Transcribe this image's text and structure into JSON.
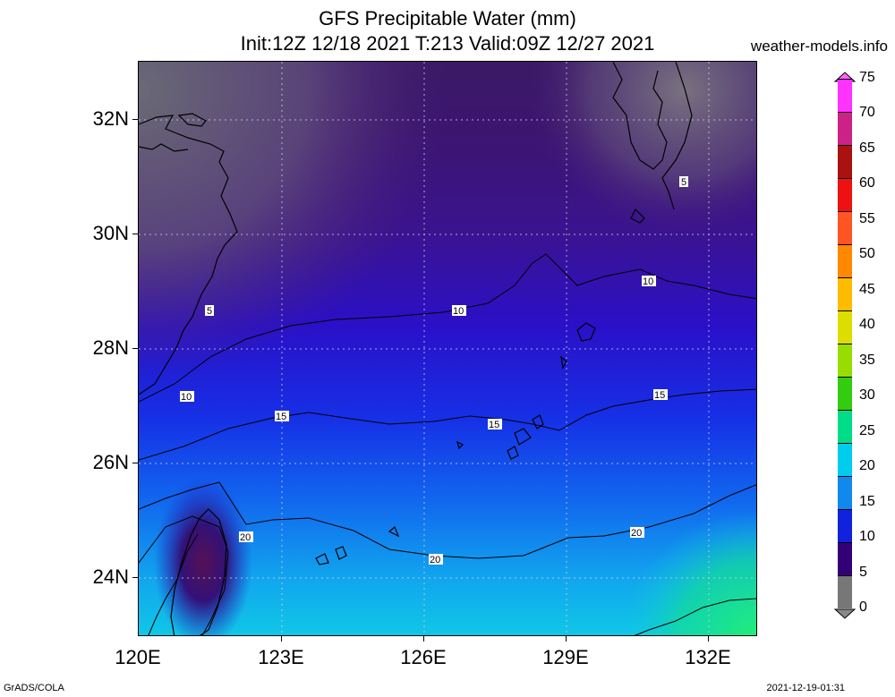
{
  "title": {
    "line1": "GFS Precipitable Water (mm)",
    "line2": "Init:12Z 12/18 2021 T:213 Valid:09Z 12/27 2021"
  },
  "site": "weather-models.info",
  "footer": {
    "left": "GrADS/COLA",
    "right": "2021-12-19-01:31"
  },
  "map": {
    "lat_labels": [
      "32N",
      "30N",
      "28N",
      "26N",
      "24N"
    ],
    "lon_labels": [
      "120E",
      "123E",
      "126E",
      "129E",
      "132E"
    ],
    "contour_labels": [
      "5",
      "5",
      "10",
      "10",
      "10",
      "15",
      "15",
      "15",
      "20",
      "20",
      "20"
    ]
  },
  "colorbar": {
    "labels": [
      "75",
      "70",
      "65",
      "60",
      "55",
      "50",
      "45",
      "40",
      "35",
      "30",
      "25",
      "20",
      "15",
      "10",
      "5",
      "0"
    ],
    "colors": [
      "#ff33ff",
      "#cc2288",
      "#aa1111",
      "#ee1111",
      "#ff5522",
      "#ff8800",
      "#ffbb00",
      "#dddd00",
      "#99dd00",
      "#33cc11",
      "#00dd88",
      "#00ccee",
      "#1188ee",
      "#1122dd",
      "#330077",
      "#777777"
    ]
  }
}
